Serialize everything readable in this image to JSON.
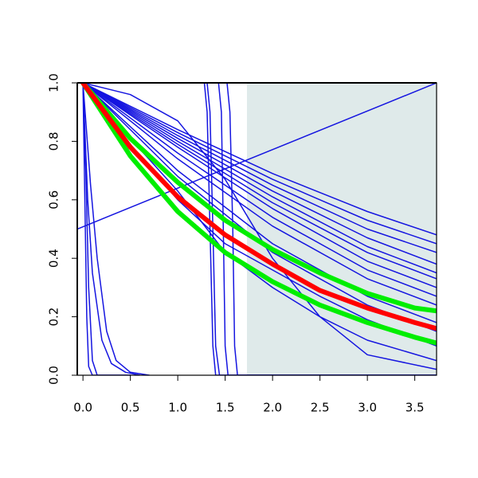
{
  "chart_data": {
    "type": "line",
    "xlim": [
      -0.06,
      3.73
    ],
    "ylim": [
      0,
      1
    ],
    "xticks": [
      {
        "value": 0,
        "label": "0.0"
      },
      {
        "value": 0.5,
        "label": "0.5"
      },
      {
        "value": 1,
        "label": "1.0"
      },
      {
        "value": 1.5,
        "label": "1.5"
      },
      {
        "value": 2,
        "label": "2.0"
      },
      {
        "value": 2.5,
        "label": "2.5"
      },
      {
        "value": 3,
        "label": "3.0"
      },
      {
        "value": 3.5,
        "label": "3.5"
      }
    ],
    "yticks": [
      {
        "value": 0,
        "label": "0.0"
      },
      {
        "value": 0.2,
        "label": "0.2"
      },
      {
        "value": 0.4,
        "label": "0.4"
      },
      {
        "value": 0.6,
        "label": "0.6"
      },
      {
        "value": 0.8,
        "label": "0.8"
      },
      {
        "value": 1,
        "label": "1.0"
      }
    ],
    "shaded_region": {
      "xmin": 1.73,
      "xmax": 3.73,
      "color": "#dfeaea"
    },
    "series": [
      {
        "color": "#1515e0",
        "width": 1.5,
        "x": [
          0,
          1,
          2,
          3,
          3.73
        ],
        "values": [
          1,
          0.84,
          0.69,
          0.56,
          0.48
        ]
      },
      {
        "color": "#1515e0",
        "width": 1.5,
        "x": [
          0,
          1,
          2,
          3,
          3.73
        ],
        "values": [
          1,
          0.83,
          0.67,
          0.53,
          0.45
        ]
      },
      {
        "color": "#1515e0",
        "width": 1.5,
        "x": [
          0,
          1,
          2,
          3,
          3.73
        ],
        "values": [
          1,
          0.82,
          0.65,
          0.5,
          0.42
        ]
      },
      {
        "color": "#1515e0",
        "width": 1.5,
        "x": [
          0,
          1,
          2,
          3,
          3.73
        ],
        "values": [
          1,
          0.81,
          0.63,
          0.47,
          0.38
        ]
      },
      {
        "color": "#1515e0",
        "width": 1.5,
        "x": [
          0,
          1,
          2,
          3,
          3.73
        ],
        "values": [
          1,
          0.8,
          0.61,
          0.44,
          0.35
        ]
      },
      {
        "color": "#1515e0",
        "width": 1.5,
        "x": [
          0,
          1,
          2,
          3,
          3.73
        ],
        "values": [
          1,
          0.79,
          0.59,
          0.42,
          0.33
        ]
      },
      {
        "color": "#1515e0",
        "width": 1.5,
        "x": [
          0,
          1,
          2,
          3,
          3.73
        ],
        "values": [
          1,
          0.78,
          0.57,
          0.39,
          0.3
        ]
      },
      {
        "color": "#1515e0",
        "width": 1.5,
        "x": [
          0,
          1,
          2,
          3,
          3.73
        ],
        "values": [
          1,
          0.76,
          0.54,
          0.36,
          0.27
        ]
      },
      {
        "color": "#1515e0",
        "width": 1.5,
        "x": [
          0,
          1,
          2,
          3,
          3.73
        ],
        "values": [
          1,
          0.74,
          0.51,
          0.33,
          0.24
        ]
      },
      {
        "color": "#1515e0",
        "width": 1.5,
        "x": [
          0,
          1,
          2,
          3,
          3.73
        ],
        "values": [
          1,
          0.7,
          0.45,
          0.27,
          0.18
        ]
      },
      {
        "color": "#1515e0",
        "width": 1.5,
        "x": [
          0,
          1,
          2,
          3,
          3.73
        ],
        "values": [
          1,
          0.68,
          0.42,
          0.24,
          0.15
        ]
      },
      {
        "color": "#1515e0",
        "width": 1.5,
        "x": [
          -0.06,
          3.73
        ],
        "values": [
          0.5,
          1
        ]
      },
      {
        "color": "#1515e0",
        "width": 1.5,
        "x": [
          0,
          0.5,
          1,
          1.5,
          2,
          2.5,
          3,
          3.73
        ],
        "values": [
          1,
          0.96,
          0.87,
          0.67,
          0.4,
          0.2,
          0.07,
          0.02
        ]
      },
      {
        "color": "#1515e0",
        "width": 1.5,
        "x": [
          0,
          0.5,
          1,
          1.5,
          2,
          2.5,
          3,
          3.73
        ],
        "values": [
          1,
          0.81,
          0.63,
          0.42,
          0.3,
          0.2,
          0.12,
          0.05
        ]
      },
      {
        "color": "#1515e0",
        "width": 1.5,
        "x": [
          0,
          0.5,
          1,
          1.5,
          2,
          2.5,
          3,
          3.73
        ],
        "values": [
          1,
          0.79,
          0.6,
          0.45,
          0.36,
          0.27,
          0.19,
          0.1
        ]
      },
      {
        "color": "#1515e0",
        "width": 1.5,
        "x": [
          0,
          0.02,
          0.04,
          0.06,
          0.1,
          0.5
        ],
        "values": [
          1,
          0.6,
          0.2,
          0.03,
          0,
          0
        ]
      },
      {
        "color": "#1515e0",
        "width": 1.5,
        "x": [
          0,
          0.03,
          0.06,
          0.1,
          0.15,
          0.5
        ],
        "values": [
          1,
          0.7,
          0.3,
          0.05,
          0,
          0
        ]
      },
      {
        "color": "#1515e0",
        "width": 1.5,
        "x": [
          0,
          0.05,
          0.1,
          0.2,
          0.3,
          0.45,
          0.6
        ],
        "values": [
          1,
          0.6,
          0.35,
          0.12,
          0.04,
          0.01,
          0
        ]
      },
      {
        "color": "#1515e0",
        "width": 1.5,
        "x": [
          0,
          0.08,
          0.15,
          0.25,
          0.35,
          0.5,
          0.7
        ],
        "values": [
          1,
          0.65,
          0.4,
          0.15,
          0.05,
          0.01,
          0
        ]
      },
      {
        "color": "#1515e0",
        "width": 1.5,
        "x": [
          0,
          1.28,
          1.31,
          1.34,
          1.37,
          1.4,
          3.73
        ],
        "values": [
          1,
          1,
          0.9,
          0.5,
          0.1,
          0,
          0
        ]
      },
      {
        "color": "#1515e0",
        "width": 1.5,
        "x": [
          0,
          1.31,
          1.34,
          1.37,
          1.4,
          1.44,
          3.73
        ],
        "values": [
          1,
          1,
          0.9,
          0.5,
          0.1,
          0,
          0
        ]
      },
      {
        "color": "#1515e0",
        "width": 1.5,
        "x": [
          0,
          1.43,
          1.46,
          1.48,
          1.5,
          1.53,
          3.73
        ],
        "values": [
          1,
          1,
          0.9,
          0.5,
          0.1,
          0,
          0
        ]
      },
      {
        "color": "#1515e0",
        "width": 1.5,
        "x": [
          0,
          1.52,
          1.55,
          1.58,
          1.6,
          1.63,
          3.73
        ],
        "values": [
          1,
          1,
          0.9,
          0.5,
          0.1,
          0,
          0
        ]
      },
      {
        "color": "#00ee00",
        "width": 6,
        "x": [
          0,
          0.5,
          1,
          1.5,
          2,
          2.5,
          3,
          3.5,
          3.73
        ],
        "values": [
          1,
          0.81,
          0.66,
          0.53,
          0.43,
          0.35,
          0.28,
          0.23,
          0.22
        ]
      },
      {
        "color": "#00ee00",
        "width": 6,
        "x": [
          0,
          0.5,
          1,
          1.5,
          2,
          2.5,
          3,
          3.5,
          3.73
        ],
        "values": [
          1,
          0.75,
          0.56,
          0.42,
          0.32,
          0.24,
          0.18,
          0.13,
          0.11
        ]
      },
      {
        "color": "#ff0000",
        "width": 6,
        "x": [
          0,
          0.5,
          1,
          1.5,
          2,
          2.5,
          3,
          3.5,
          3.73
        ],
        "values": [
          1,
          0.78,
          0.61,
          0.48,
          0.38,
          0.29,
          0.23,
          0.18,
          0.16
        ]
      }
    ]
  }
}
